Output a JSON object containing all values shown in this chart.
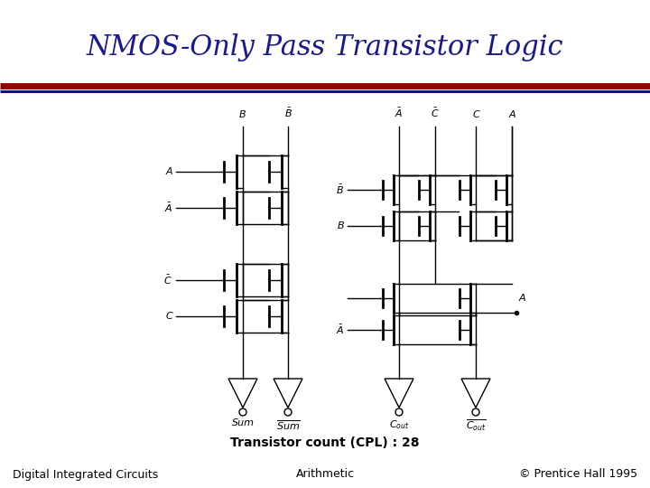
{
  "title": "NMOS-Only Pass Transistor Logic",
  "title_color": "#1a1a8c",
  "title_fontsize": 22,
  "bg_color": "#ffffff",
  "line_red_color": "#990000",
  "line_blue_color": "#000080",
  "footer_left": "Digital Integrated Circuits",
  "footer_center": "Arithmetic",
  "footer_right": "© Prentice Hall 1995",
  "footer_fontsize": 9,
  "transistor_count_text": "Transistor count (CPL) : 28",
  "transistor_count_fontsize": 10,
  "diagram_color": "#000000",
  "lw_thin": 1.0,
  "lw_thick": 2.0
}
